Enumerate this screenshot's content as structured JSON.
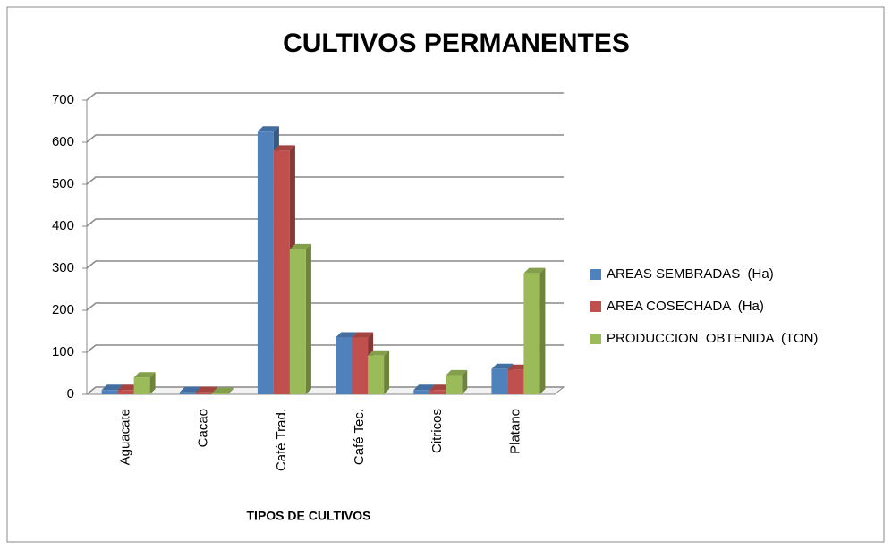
{
  "chart_data": {
    "type": "bar3d",
    "title": "CULTIVOS PERMANENTES",
    "x_label": "TIPOS DE CULTIVOS",
    "categories": [
      "Aguacate",
      "Cacao",
      "Café Trad.",
      "Café Tec.",
      "Citricos",
      "Platano"
    ],
    "series": [
      {
        "name": "AREAS SEMBRADAS  (Ha)",
        "color": "#4f81bd",
        "values": [
          10,
          5,
          625,
          135,
          10,
          60
        ]
      },
      {
        "name": "AREA COSECHADA  (Ha)",
        "color": "#c0504d",
        "values": [
          10,
          5,
          580,
          135,
          10,
          58
        ]
      },
      {
        "name": "PRODUCCION  OBTENIDA  (TON)",
        "color": "#9bbb59",
        "values": [
          40,
          3,
          345,
          92,
          45,
          288
        ]
      }
    ],
    "ylim": [
      0,
      700
    ],
    "yticks": [
      0,
      100,
      200,
      300,
      400,
      500,
      600,
      700
    ],
    "grid": true,
    "legend": "right"
  }
}
